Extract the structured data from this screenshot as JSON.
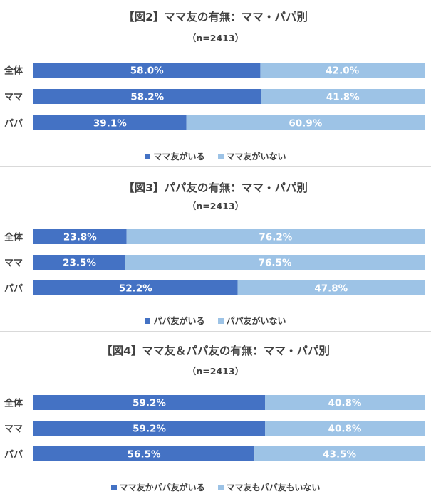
{
  "colors": {
    "primary": "#4472C4",
    "secondary": "#9DC3E6",
    "text": "#404040",
    "label": "#FFFFFF"
  },
  "chart_data": [
    {
      "type": "bar",
      "orientation": "horizontal-stacked-100",
      "title": "【図2】ママ友の有無：ママ・パパ別",
      "subtitle": "（n=2413）",
      "categories": [
        "全体",
        "ママ",
        "パパ"
      ],
      "series": [
        {
          "name": "ママ友がいる",
          "values": [
            58.0,
            58.2,
            39.1
          ],
          "labels": [
            "58.0%",
            "58.2%",
            "39.1%"
          ]
        },
        {
          "name": "ママ友がいない",
          "values": [
            42.0,
            41.8,
            60.9
          ],
          "labels": [
            "42.0%",
            "41.8%",
            "60.9%"
          ]
        }
      ],
      "xlim": [
        0,
        100
      ],
      "legend_position": "bottom"
    },
    {
      "type": "bar",
      "orientation": "horizontal-stacked-100",
      "title": "【図3】パパ友の有無：ママ・パパ別",
      "subtitle": "（n=2413）",
      "categories": [
        "全体",
        "ママ",
        "パパ"
      ],
      "series": [
        {
          "name": "パパ友がいる",
          "values": [
            23.8,
            23.5,
            52.2
          ],
          "labels": [
            "23.8%",
            "23.5%",
            "52.2%"
          ]
        },
        {
          "name": "パパ友がいない",
          "values": [
            76.2,
            76.5,
            47.8
          ],
          "labels": [
            "76.2%",
            "76.5%",
            "47.8%"
          ]
        }
      ],
      "xlim": [
        0,
        100
      ],
      "legend_position": "bottom"
    },
    {
      "type": "bar",
      "orientation": "horizontal-stacked-100",
      "title": "【図4】ママ友＆パパ友の有無：ママ・パパ別",
      "subtitle": "（n=2413）",
      "categories": [
        "全体",
        "ママ",
        "パパ"
      ],
      "series": [
        {
          "name": "ママ友かパパ友がいる",
          "values": [
            59.2,
            59.2,
            56.5
          ],
          "labels": [
            "59.2%",
            "59.2%",
            "56.5%"
          ]
        },
        {
          "name": "ママ友もパパ友もいない",
          "values": [
            40.8,
            40.8,
            43.5
          ],
          "labels": [
            "40.8%",
            "40.8%",
            "43.5%"
          ]
        }
      ],
      "xlim": [
        0,
        100
      ],
      "legend_position": "bottom"
    }
  ]
}
